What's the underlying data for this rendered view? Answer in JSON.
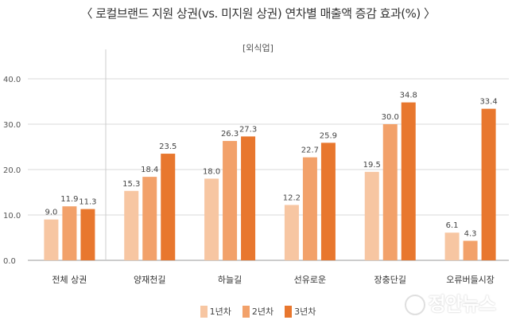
{
  "title": "〈 로컬브랜드 지원 상권(vs. 미지원 상권) 연차별 매출액 증감 효과(%) 〉",
  "chart_data": {
    "type": "bar",
    "subtitle": "[외식업]",
    "categories": [
      "전체 상권",
      "양재천길",
      "하늘길",
      "선유로운",
      "장충단길",
      "오류버들시장"
    ],
    "series": [
      {
        "name": "1년차",
        "color": "#F7C6A2",
        "values": [
          9.0,
          15.3,
          18.0,
          12.2,
          19.5,
          6.1
        ]
      },
      {
        "name": "2년차",
        "color": "#F2A16A",
        "values": [
          11.9,
          18.4,
          26.3,
          22.7,
          30.0,
          4.3
        ]
      },
      {
        "name": "3년차",
        "color": "#E8772E",
        "values": [
          11.3,
          23.5,
          27.3,
          25.9,
          34.8,
          33.4
        ]
      }
    ],
    "ylim": [
      0,
      40
    ],
    "yticks": [
      "0.0",
      "10.0",
      "20.0",
      "30.0",
      "40.0"
    ],
    "grid": true,
    "legend_position": "bottom-center",
    "xlabel": "",
    "ylabel": ""
  },
  "watermark": "정안뉴스"
}
